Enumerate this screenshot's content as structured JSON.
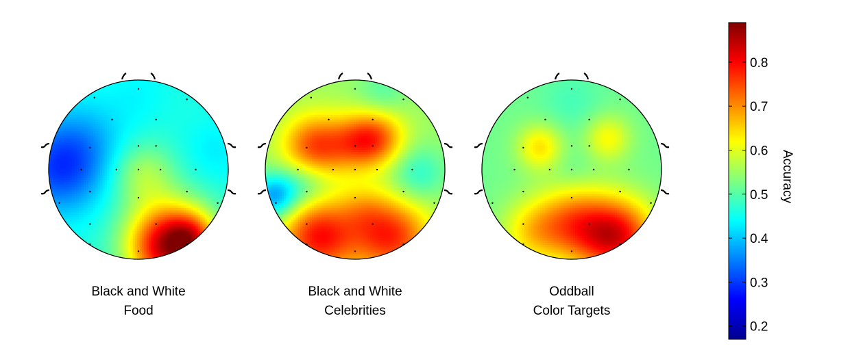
{
  "chart_data": {
    "type": "heatmap",
    "subtype": "EEG scalp topography",
    "colormap": "jet",
    "colorbar": {
      "label": "Accuracy",
      "range": [
        0.17,
        0.89
      ],
      "ticks": [
        "0.2",
        "0.3",
        "0.4",
        "0.5",
        "0.6",
        "0.7",
        "0.8"
      ],
      "tick_values": [
        0.2,
        0.3,
        0.4,
        0.5,
        0.6,
        0.7,
        0.8
      ]
    },
    "panels": [
      {
        "caption": [
          "Black and White",
          "Food"
        ],
        "base": 0.46,
        "blobs": [
          {
            "cx": 0.35,
            "cy": 0.85,
            "s": 0.33,
            "a": 0.4
          },
          {
            "cx": 0.6,
            "cy": 0.75,
            "s": 0.18,
            "a": 0.12
          },
          {
            "cx": 0.05,
            "cy": 0.05,
            "s": 0.25,
            "a": 0.1
          },
          {
            "cx": -0.9,
            "cy": 0.0,
            "s": 0.35,
            "a": -0.14
          },
          {
            "cx": -0.6,
            "cy": -0.3,
            "s": 0.35,
            "a": -0.06
          },
          {
            "cx": 0.0,
            "cy": -0.85,
            "s": 0.25,
            "a": -0.02
          },
          {
            "cx": 0.85,
            "cy": -0.2,
            "s": 0.25,
            "a": -0.03
          }
        ]
      },
      {
        "caption": [
          "Black and White",
          "Celebrities"
        ],
        "base": 0.55,
        "blobs": [
          {
            "cx": -0.45,
            "cy": -0.25,
            "s": 0.25,
            "a": 0.2
          },
          {
            "cx": 0.25,
            "cy": -0.35,
            "s": 0.22,
            "a": 0.16
          },
          {
            "cx": 0.0,
            "cy": -0.3,
            "s": 0.22,
            "a": 0.12
          },
          {
            "cx": -0.4,
            "cy": 0.75,
            "s": 0.3,
            "a": 0.24
          },
          {
            "cx": 0.4,
            "cy": 0.75,
            "s": 0.3,
            "a": 0.22
          },
          {
            "cx": 0.1,
            "cy": 0.45,
            "s": 0.2,
            "a": 0.06
          },
          {
            "cx": -0.9,
            "cy": 0.3,
            "s": 0.18,
            "a": -0.18
          },
          {
            "cx": -0.55,
            "cy": 0.15,
            "s": 0.2,
            "a": -0.08
          },
          {
            "cx": 0.7,
            "cy": 0.05,
            "s": 0.22,
            "a": -0.08
          },
          {
            "cx": 0.3,
            "cy": -0.85,
            "s": 0.2,
            "a": -0.05
          }
        ]
      },
      {
        "caption": [
          "Oddball",
          "Color Targets"
        ],
        "base": 0.52,
        "blobs": [
          {
            "cx": 0.5,
            "cy": 0.75,
            "s": 0.3,
            "a": 0.28
          },
          {
            "cx": 0.0,
            "cy": 0.6,
            "s": 0.3,
            "a": 0.18
          },
          {
            "cx": -0.45,
            "cy": 0.7,
            "s": 0.25,
            "a": 0.1
          },
          {
            "cx": -0.35,
            "cy": -0.25,
            "s": 0.18,
            "a": 0.12
          },
          {
            "cx": 0.4,
            "cy": -0.35,
            "s": 0.18,
            "a": 0.1
          },
          {
            "cx": 0.0,
            "cy": 0.0,
            "s": 0.2,
            "a": -0.02
          },
          {
            "cx": 0.0,
            "cy": -0.75,
            "s": 0.25,
            "a": -0.03
          }
        ]
      }
    ],
    "electrodes": [
      [
        0.0,
        -0.92
      ],
      [
        -0.5,
        -0.82
      ],
      [
        0.55,
        -0.8
      ],
      [
        -0.3,
        -0.57
      ],
      [
        0.2,
        -0.57
      ],
      [
        -0.55,
        -0.25
      ],
      [
        0.0,
        -0.27
      ],
      [
        0.2,
        -0.27
      ],
      [
        -0.65,
        0.0
      ],
      [
        -0.25,
        0.0
      ],
      [
        0.0,
        0.0
      ],
      [
        0.25,
        0.0
      ],
      [
        0.65,
        0.0
      ],
      [
        -0.55,
        0.25
      ],
      [
        0.0,
        0.32
      ],
      [
        0.55,
        0.25
      ],
      [
        -0.9,
        0.38
      ],
      [
        0.9,
        0.38
      ],
      [
        -0.55,
        0.62
      ],
      [
        0.2,
        0.62
      ],
      [
        -0.55,
        0.85
      ],
      [
        0.0,
        0.93
      ],
      [
        0.55,
        0.85
      ]
    ]
  }
}
